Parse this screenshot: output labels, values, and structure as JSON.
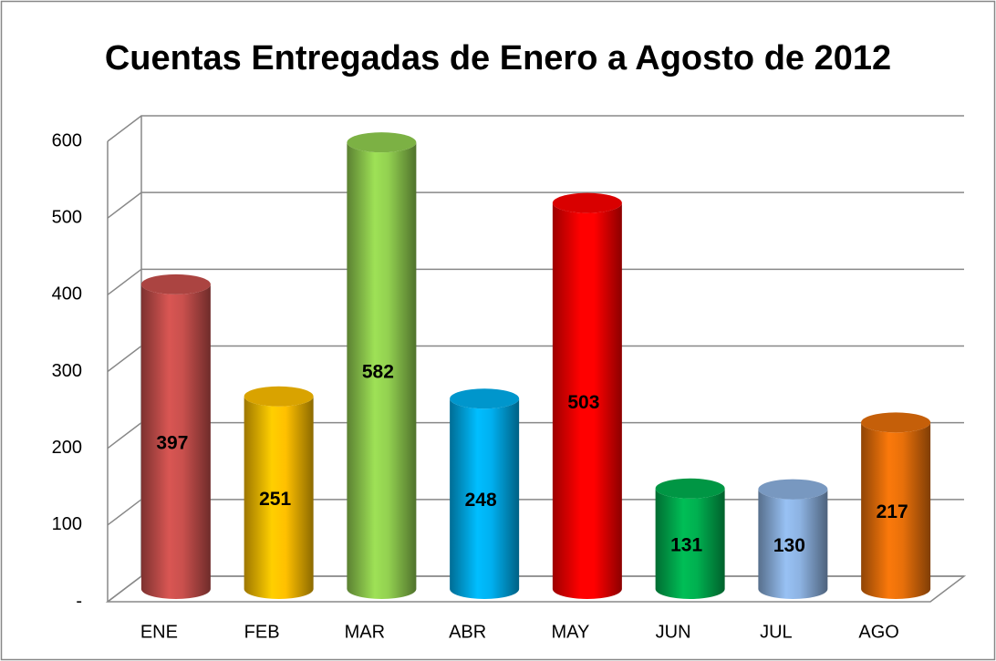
{
  "chart_data": {
    "type": "bar",
    "title": "Cuentas Entregadas de Enero a Agosto de 2012",
    "categories": [
      "ENE",
      "FEB",
      "MAR",
      "ABR",
      "MAY",
      "JUN",
      "JUL",
      "AGO"
    ],
    "values": [
      397,
      251,
      582,
      248,
      503,
      131,
      130,
      217
    ],
    "colors": [
      "#c9504d",
      "#ffc000",
      "#92d050",
      "#00b0f0",
      "#ff0000",
      "#00b050",
      "#8db3e2",
      "#e8700a"
    ],
    "ylim": [
      0,
      600
    ],
    "yticks": [
      {
        "value": 0,
        "label": "-"
      },
      100,
      200,
      300,
      400,
      500,
      600
    ],
    "grid": true
  }
}
